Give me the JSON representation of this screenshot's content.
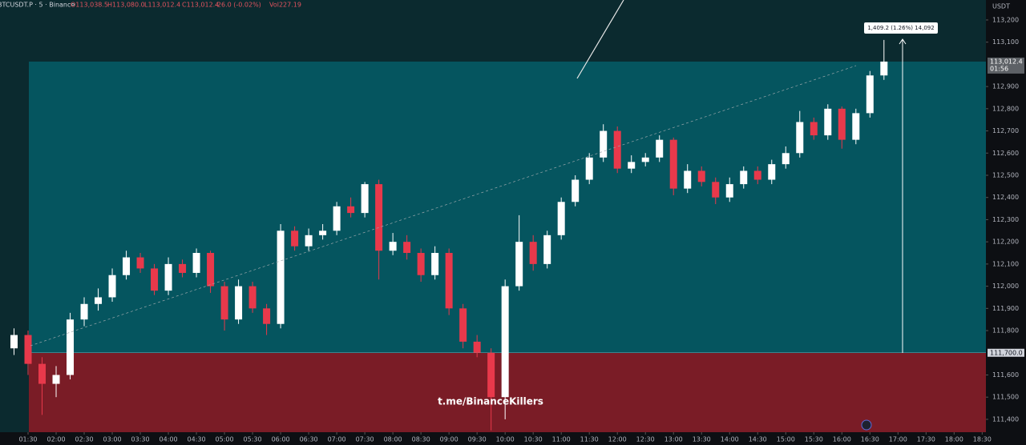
{
  "chart_data": {
    "type": "candlestick",
    "header": {
      "symbol": "BTCUSDT.P · 5 · Binance",
      "open": "O113,038.5",
      "high": "H113,080.0",
      "low": "L113,012.4",
      "close": "C113,012.4",
      "change": "-26.0 (-0.02%)",
      "volume": "Vol227.19"
    },
    "currency": "USDT",
    "watermark": "t.me/BinanceKillers",
    "measure_label": "1,409.2 (1.26%) 14,092",
    "up_color": "#ffffff",
    "down_color": "#e8394b",
    "x": [
      "01:15",
      "01:30",
      "01:45",
      "02:00",
      "02:15",
      "02:30",
      "02:45",
      "03:00",
      "03:15",
      "03:30",
      "03:45",
      "04:00",
      "04:15",
      "04:30",
      "04:45",
      "05:00",
      "05:15",
      "05:30",
      "05:45",
      "06:00",
      "06:15",
      "06:30",
      "06:45",
      "07:00",
      "07:15",
      "07:30",
      "07:45",
      "08:00",
      "08:15",
      "08:30",
      "08:45",
      "09:00",
      "09:15",
      "09:30",
      "09:45",
      "10:00",
      "10:15",
      "10:30",
      "10:45",
      "11:00",
      "11:15",
      "11:30",
      "11:45",
      "12:00",
      "12:15",
      "12:30",
      "12:45",
      "13:00",
      "13:15",
      "13:30",
      "13:45",
      "14:00",
      "14:15",
      "14:30",
      "14:45",
      "15:00",
      "15:15",
      "15:30",
      "15:45",
      "16:00",
      "16:15",
      "16:30",
      "16:45"
    ],
    "open": [
      111720,
      111780,
      111650,
      111560,
      111600,
      111850,
      111920,
      111950,
      112050,
      112130,
      112080,
      111980,
      112100,
      112060,
      112150,
      112000,
      111850,
      112000,
      111900,
      111830,
      112250,
      112180,
      112230,
      112250,
      112360,
      112330,
      112460,
      112160,
      112200,
      112150,
      112050,
      112150,
      111900,
      111750,
      111700,
      111500,
      112000,
      112200,
      112100,
      112230,
      112380,
      112480,
      112580,
      112700,
      112530,
      112560,
      112580,
      112660,
      112440,
      112520,
      112470,
      112400,
      112460,
      112520,
      112480,
      112550,
      112600,
      112740,
      112680,
      112800,
      112660,
      112780,
      112950
    ],
    "high": [
      111810,
      111800,
      111680,
      111640,
      111880,
      111950,
      111990,
      112080,
      112160,
      112150,
      112100,
      112130,
      112120,
      112170,
      112160,
      112020,
      112030,
      112020,
      111920,
      112280,
      112270,
      112260,
      112280,
      112380,
      112400,
      112470,
      112480,
      112240,
      112230,
      112170,
      112180,
      112170,
      111920,
      111780,
      111720,
      112030,
      112320,
      112230,
      112250,
      112400,
      112500,
      112600,
      112730,
      112720,
      112590,
      112600,
      112680,
      112670,
      112550,
      112540,
      112490,
      112490,
      112540,
      112540,
      112570,
      112630,
      112790,
      112760,
      112820,
      112810,
      112800,
      112970,
      113110
    ],
    "low": [
      111690,
      111600,
      111420,
      111500,
      111580,
      111820,
      111890,
      111930,
      112030,
      112060,
      111960,
      111960,
      112040,
      112040,
      111970,
      111800,
      111830,
      111880,
      111780,
      111810,
      112160,
      112160,
      112210,
      112230,
      112310,
      112310,
      112030,
      112140,
      112120,
      112020,
      112030,
      111870,
      111720,
      111680,
      111350,
      111400,
      111980,
      112070,
      112080,
      112210,
      112360,
      112460,
      112560,
      112510,
      112510,
      112540,
      112560,
      112410,
      112420,
      112450,
      112370,
      112380,
      112440,
      112460,
      112460,
      112530,
      112580,
      112660,
      112660,
      112620,
      112640,
      112760,
      112930
    ],
    "close": [
      111780,
      111650,
      111560,
      111600,
      111850,
      111920,
      111950,
      112050,
      112130,
      112080,
      111980,
      112100,
      112060,
      112150,
      112000,
      111850,
      112000,
      111900,
      111830,
      112250,
      112180,
      112230,
      112250,
      112360,
      112330,
      112460,
      112160,
      112200,
      112150,
      112050,
      112150,
      111900,
      111750,
      111700,
      111500,
      112000,
      112200,
      112100,
      112230,
      112380,
      112480,
      112580,
      112700,
      112530,
      112560,
      112580,
      112660,
      112440,
      112520,
      112470,
      112400,
      112460,
      112520,
      112480,
      112550,
      112600,
      112740,
      112680,
      112800,
      112660,
      112780,
      112950,
      113012.4
    ],
    "xlim": [
      "01:00",
      "18:34"
    ],
    "xticks": [
      "01:30",
      "02:00",
      "02:30",
      "03:00",
      "03:30",
      "04:00",
      "04:30",
      "05:00",
      "05:30",
      "06:00",
      "06:30",
      "07:00",
      "07:30",
      "08:00",
      "08:30",
      "09:00",
      "09:30",
      "10:00",
      "10:30",
      "11:00",
      "11:30",
      "12:00",
      "12:30",
      "13:00",
      "13:30",
      "14:00",
      "14:30",
      "15:00",
      "15:30",
      "16:00",
      "16:30",
      "17:00",
      "17:30",
      "18:00",
      "18:30"
    ],
    "ylim": [
      111342,
      113290
    ],
    "yticks": [
      {
        "value": 111400,
        "label": "111,400"
      },
      {
        "value": 111500,
        "label": "111,500"
      },
      {
        "value": 111600,
        "label": "111,600"
      },
      {
        "value": 111800,
        "label": "111,800"
      },
      {
        "value": 111900,
        "label": "111,900"
      },
      {
        "value": 112000,
        "label": "112,000"
      },
      {
        "value": 112100,
        "label": "112,100"
      },
      {
        "value": 112200,
        "label": "112,200"
      },
      {
        "value": 112300,
        "label": "112,300"
      },
      {
        "value": 112400,
        "label": "112,400"
      },
      {
        "value": 112500,
        "label": "112,500"
      },
      {
        "value": 112600,
        "label": "112,600"
      },
      {
        "value": 112700,
        "label": "112,700"
      },
      {
        "value": 112800,
        "label": "112,800"
      },
      {
        "value": 112900,
        "label": "112,900"
      },
      {
        "value": 113100,
        "label": "113,100"
      },
      {
        "value": 113200,
        "label": "113,200"
      }
    ],
    "price_labels": [
      {
        "value": 113012.4,
        "label": "113,012.4",
        "time": "01:56"
      },
      {
        "value": 111700,
        "label": "111,700.0"
      }
    ]
  }
}
